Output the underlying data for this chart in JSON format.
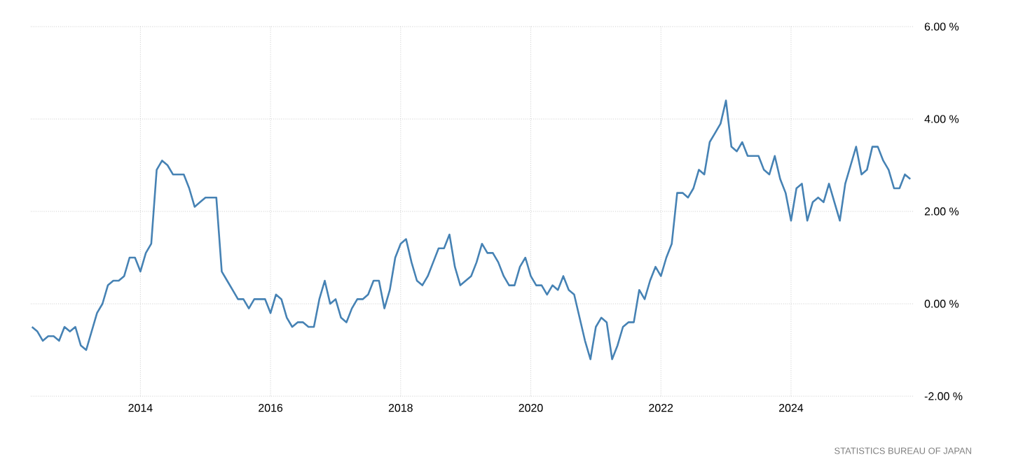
{
  "chart_data": {
    "type": "line",
    "x": [
      "2012-05",
      "2012-06",
      "2012-07",
      "2012-08",
      "2012-09",
      "2012-10",
      "2012-11",
      "2012-12",
      "2013-01",
      "2013-02",
      "2013-03",
      "2013-04",
      "2013-05",
      "2013-06",
      "2013-07",
      "2013-08",
      "2013-09",
      "2013-10",
      "2013-11",
      "2013-12",
      "2014-01",
      "2014-02",
      "2014-03",
      "2014-04",
      "2014-05",
      "2014-06",
      "2014-07",
      "2014-08",
      "2014-09",
      "2014-10",
      "2014-11",
      "2014-12",
      "2015-01",
      "2015-02",
      "2015-03",
      "2015-04",
      "2015-05",
      "2015-06",
      "2015-07",
      "2015-08",
      "2015-09",
      "2015-10",
      "2015-11",
      "2015-12",
      "2016-01",
      "2016-02",
      "2016-03",
      "2016-04",
      "2016-05",
      "2016-06",
      "2016-07",
      "2016-08",
      "2016-09",
      "2016-10",
      "2016-11",
      "2016-12",
      "2017-01",
      "2017-02",
      "2017-03",
      "2017-04",
      "2017-05",
      "2017-06",
      "2017-07",
      "2017-08",
      "2017-09",
      "2017-10",
      "2017-11",
      "2017-12",
      "2018-01",
      "2018-02",
      "2018-03",
      "2018-04",
      "2018-05",
      "2018-06",
      "2018-07",
      "2018-08",
      "2018-09",
      "2018-10",
      "2018-11",
      "2018-12",
      "2019-01",
      "2019-02",
      "2019-03",
      "2019-04",
      "2019-05",
      "2019-06",
      "2019-07",
      "2019-08",
      "2019-09",
      "2019-10",
      "2019-11",
      "2019-12",
      "2020-01",
      "2020-02",
      "2020-03",
      "2020-04",
      "2020-05",
      "2020-06",
      "2020-07",
      "2020-08",
      "2020-09",
      "2020-10",
      "2020-11",
      "2020-12",
      "2021-01",
      "2021-02",
      "2021-03",
      "2021-04",
      "2021-05",
      "2021-06",
      "2021-07",
      "2021-08",
      "2021-09",
      "2021-10",
      "2021-11",
      "2021-12",
      "2022-01",
      "2022-02",
      "2022-03",
      "2022-04",
      "2022-05",
      "2022-06",
      "2022-07",
      "2022-08",
      "2022-09",
      "2022-10",
      "2022-11",
      "2022-12",
      "2023-01",
      "2023-02",
      "2023-03",
      "2023-04",
      "2023-05",
      "2023-06",
      "2023-07",
      "2023-08",
      "2023-09",
      "2023-10",
      "2023-11",
      "2023-12",
      "2024-01",
      "2024-02",
      "2024-03",
      "2024-04",
      "2024-05",
      "2024-06",
      "2024-07",
      "2024-08",
      "2024-09",
      "2024-10",
      "2024-11",
      "2024-12",
      "2025-01",
      "2025-02",
      "2025-03",
      "2025-04",
      "2025-05",
      "2025-06",
      "2025-07",
      "2025-08",
      "2025-09",
      "2025-10",
      "2025-11"
    ],
    "series": [
      {
        "color": "#4682b4",
        "values": [
          -0.5,
          -0.6,
          -0.8,
          -0.7,
          -0.7,
          -0.8,
          -0.5,
          -0.6,
          -0.5,
          -0.9,
          -1.0,
          -0.6,
          -0.2,
          0.0,
          0.4,
          0.5,
          0.5,
          0.6,
          1.0,
          1.0,
          0.7,
          1.1,
          1.3,
          2.9,
          3.1,
          3.0,
          2.8,
          2.8,
          2.8,
          2.5,
          2.1,
          2.2,
          2.3,
          2.3,
          2.3,
          0.7,
          0.5,
          0.3,
          0.1,
          0.1,
          -0.1,
          0.1,
          0.1,
          0.1,
          -0.2,
          0.2,
          0.1,
          -0.3,
          -0.5,
          -0.4,
          -0.4,
          -0.5,
          -0.5,
          0.1,
          0.5,
          0.0,
          0.1,
          -0.3,
          -0.4,
          -0.1,
          0.1,
          0.1,
          0.2,
          0.5,
          0.5,
          -0.1,
          0.3,
          1.0,
          1.3,
          1.4,
          0.9,
          0.5,
          0.4,
          0.6,
          0.9,
          1.2,
          1.2,
          1.5,
          0.8,
          0.4,
          0.5,
          0.6,
          0.9,
          1.3,
          1.1,
          1.1,
          0.9,
          0.6,
          0.4,
          0.4,
          0.8,
          1.0,
          0.6,
          0.4,
          0.4,
          0.2,
          0.4,
          0.3,
          0.6,
          0.3,
          0.2,
          -0.3,
          -0.8,
          -1.2,
          -0.5,
          -0.3,
          -0.4,
          -1.2,
          -0.9,
          -0.5,
          -0.4,
          -0.4,
          0.3,
          0.1,
          0.5,
          0.8,
          0.6,
          1.0,
          1.3,
          2.4,
          2.4,
          2.3,
          2.5,
          2.9,
          2.8,
          3.5,
          3.7,
          3.9,
          4.4,
          3.4,
          3.3,
          3.5,
          3.2,
          3.2,
          3.2,
          2.9,
          2.8,
          3.2,
          2.7,
          2.4,
          1.8,
          2.5,
          2.6,
          1.8,
          2.2,
          2.3,
          2.2,
          2.6,
          2.2,
          1.8,
          2.6,
          3.0,
          3.4,
          2.8,
          2.9,
          3.4,
          3.4,
          3.1,
          2.9,
          2.5,
          2.5,
          2.8,
          2.7
        ]
      }
    ],
    "xlim": [
      "2012-04-25",
      "2025-11-20"
    ],
    "ylim": [
      -2,
      6
    ],
    "xticks": [
      {
        "value": "2014-01",
        "label": "2014"
      },
      {
        "value": "2016-01",
        "label": "2016"
      },
      {
        "value": "2018-01",
        "label": "2018"
      },
      {
        "value": "2020-01",
        "label": "2020"
      },
      {
        "value": "2022-01",
        "label": "2022"
      },
      {
        "value": "2024-01",
        "label": "2024"
      }
    ],
    "yticks": [
      {
        "value": -2,
        "label": "-2.00 %"
      },
      {
        "value": 0,
        "label": "0.00 %"
      },
      {
        "value": 2,
        "label": "2.00 %"
      },
      {
        "value": 4,
        "label": "4.00 %"
      },
      {
        "value": 6,
        "label": "6.00 %"
      }
    ],
    "grid": true,
    "annotations": [
      "STATISTICS BUREAU OF JAPAN"
    ]
  }
}
